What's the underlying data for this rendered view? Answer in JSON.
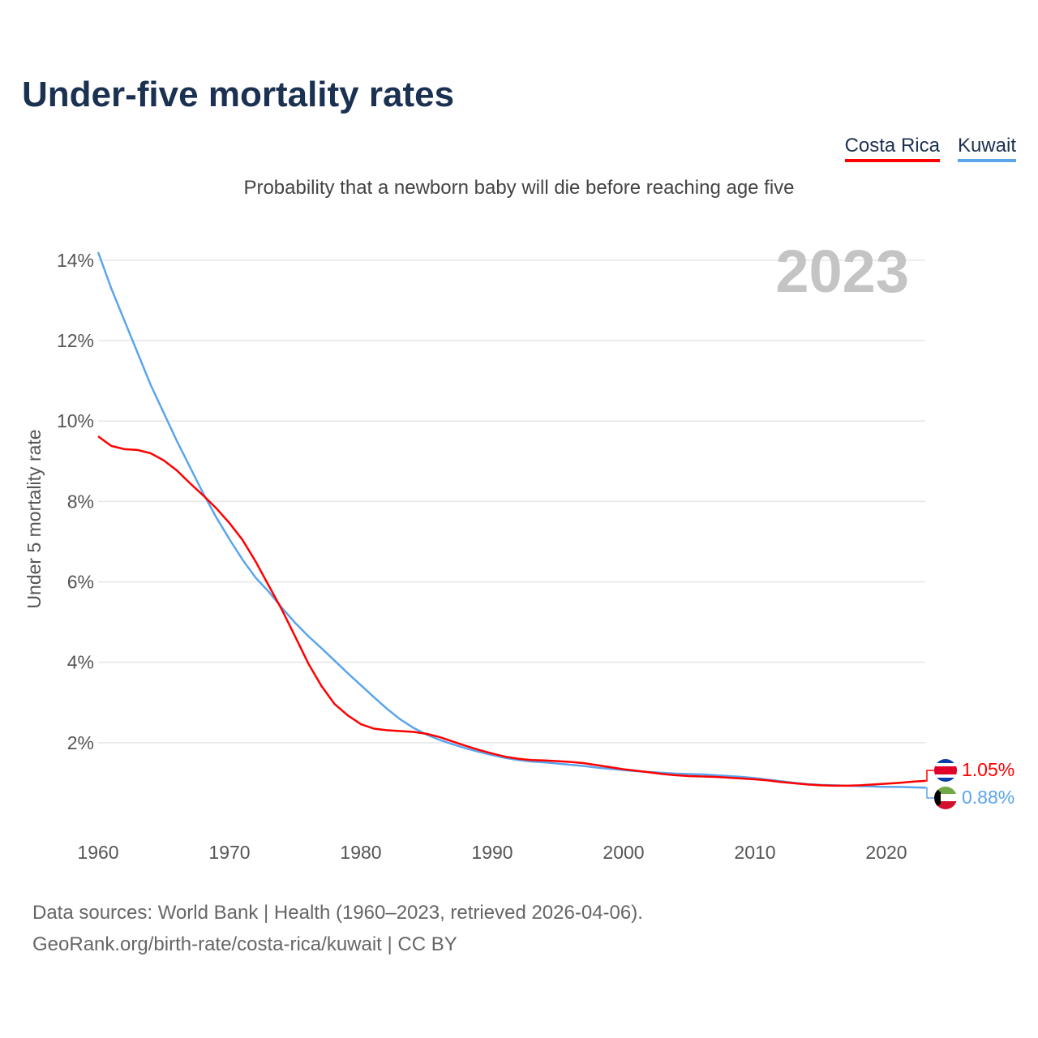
{
  "title": "Under-five mortality rates",
  "subtitle": "Probability that a newborn baby will die before reaching age five",
  "footer": {
    "line1": "Data sources: World Bank | Health (1960–2023, retrieved 2026-04-06).",
    "line2": "GeoRank.org/birth-rate/costa-rica/kuwait | CC BY"
  },
  "chart_data": {
    "type": "line",
    "title": "Under-five mortality rates",
    "ylabel": "Under 5 mortality rate",
    "year_label": "2023",
    "xlim": [
      1960,
      2023
    ],
    "ylim": [
      0,
      14.5
    ],
    "x_ticks": [
      1960,
      1970,
      1980,
      1990,
      2000,
      2010,
      2020
    ],
    "y_ticks": [
      2,
      4,
      6,
      8,
      10,
      12,
      14
    ],
    "y_tick_labels": [
      "2%",
      "4%",
      "6%",
      "8%",
      "10%",
      "12%",
      "14%"
    ],
    "legend_position": "top-right",
    "series": [
      {
        "name": "Costa Rica",
        "color": "#ff0000",
        "end_label": "1.05%",
        "values": [
          9.62,
          9.38,
          9.3,
          9.28,
          9.2,
          9.02,
          8.77,
          8.45,
          8.15,
          7.83,
          7.46,
          7.04,
          6.5,
          5.9,
          5.3,
          4.64,
          3.97,
          3.41,
          2.96,
          2.68,
          2.46,
          2.35,
          2.31,
          2.29,
          2.27,
          2.22,
          2.14,
          2.03,
          1.92,
          1.82,
          1.73,
          1.65,
          1.6,
          1.57,
          1.56,
          1.54,
          1.52,
          1.49,
          1.44,
          1.39,
          1.34,
          1.3,
          1.26,
          1.22,
          1.19,
          1.17,
          1.16,
          1.15,
          1.13,
          1.11,
          1.09,
          1.06,
          1.02,
          0.99,
          0.96,
          0.94,
          0.93,
          0.93,
          0.94,
          0.96,
          0.98,
          1.0,
          1.03,
          1.05
        ]
      },
      {
        "name": "Kuwait",
        "color": "#5aa5ec",
        "end_label": "0.88%",
        "values": [
          14.2,
          13.3,
          12.5,
          11.7,
          10.9,
          10.2,
          9.5,
          8.85,
          8.2,
          7.6,
          7.06,
          6.55,
          6.1,
          5.75,
          5.35,
          4.98,
          4.65,
          4.35,
          4.04,
          3.73,
          3.43,
          3.13,
          2.84,
          2.58,
          2.37,
          2.2,
          2.07,
          1.96,
          1.86,
          1.77,
          1.69,
          1.62,
          1.57,
          1.53,
          1.51,
          1.48,
          1.45,
          1.42,
          1.38,
          1.35,
          1.32,
          1.29,
          1.27,
          1.25,
          1.23,
          1.22,
          1.21,
          1.19,
          1.17,
          1.15,
          1.12,
          1.08,
          1.04,
          1.0,
          0.97,
          0.95,
          0.94,
          0.93,
          0.92,
          0.91,
          0.9,
          0.9,
          0.89,
          0.88
        ]
      }
    ]
  }
}
